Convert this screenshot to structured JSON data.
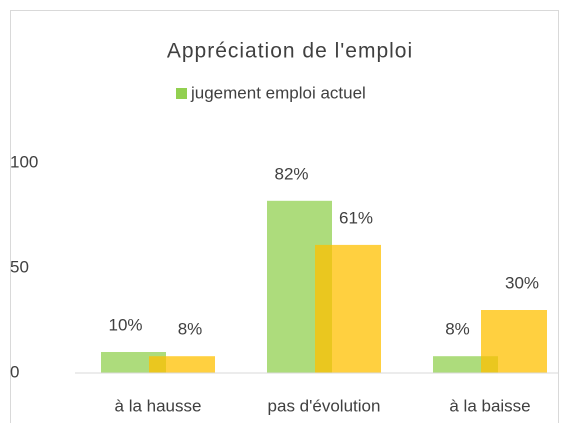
{
  "chart_data": {
    "type": "bar",
    "title": "Appréciation de l'emploi",
    "categories": [
      "à la hausse",
      "pas d'évolution",
      "à la baisse"
    ],
    "series": [
      {
        "name": "jugement emploi actuel",
        "color": "#92d050",
        "values": [
          10,
          82,
          8
        ],
        "value_labels": [
          "10%",
          "82%",
          "8%"
        ]
      },
      {
        "color": "#ffc000",
        "values": [
          8,
          61,
          30
        ],
        "value_labels": [
          "8%",
          "61%",
          "30%"
        ]
      }
    ],
    "ylim": [
      0,
      100
    ],
    "yticks": [
      0,
      50,
      100
    ],
    "legend": "top"
  }
}
